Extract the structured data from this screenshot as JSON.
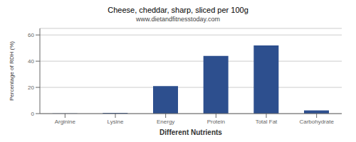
{
  "chart_data": {
    "type": "bar",
    "title": "Cheese, cheddar, sharp, sliced per 100g",
    "subtitle": "www.dietandfitnesstoday.com",
    "xlabel": "Different Nutrients",
    "ylabel": "Percentage of RDH (%)",
    "categories": [
      "Arginine",
      "Lysine",
      "Energy",
      "Protein",
      "Total Fat",
      "Carbohydrate"
    ],
    "values": [
      0.2,
      0.5,
      21,
      44,
      52,
      2.5
    ],
    "color": "#2d4f8e",
    "ylim": [
      0,
      65
    ],
    "yticks": [
      0,
      20,
      40,
      60
    ],
    "grid": true
  }
}
